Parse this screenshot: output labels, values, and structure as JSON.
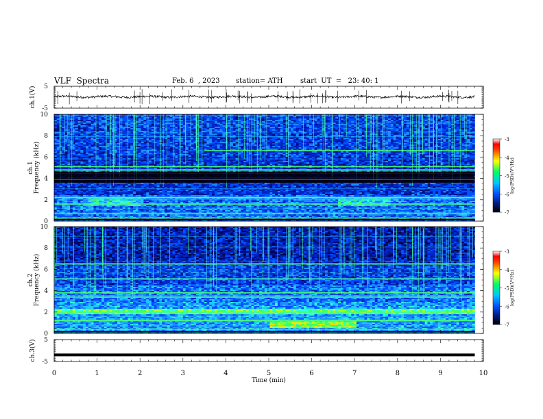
{
  "header": {
    "title": "VLF  Spectra",
    "date": "Feb. 6  , 2023",
    "station": "station= ATH",
    "start": "start  UT  =   23: 40: 1"
  },
  "chart_data": [
    {
      "type": "line",
      "title": "",
      "ylabel": "ch.1(V)",
      "ylim": [
        -5,
        5
      ],
      "yticks": [
        "5",
        "-5"
      ],
      "xlim": [
        0,
        10
      ],
      "x_extent": [
        0,
        9.8
      ],
      "level": 0.2,
      "noise_amplitude": 0.5
    },
    {
      "type": "heatmap",
      "ylabel": "ch.1\nFrequency (kHz)",
      "ylim": [
        0,
        10
      ],
      "yticks": [
        "0",
        "2",
        "4",
        "6",
        "8",
        "10"
      ],
      "xlim": [
        0,
        10
      ],
      "x_extent": [
        0,
        9.8
      ],
      "colorbar": {
        "label": "log(PSD)(V²/Hz)",
        "range": [
          -7,
          -3
        ],
        "ticks": [
          "-3",
          "-4",
          "-5",
          "-6",
          "-7"
        ]
      },
      "features": {
        "strong_lines_khz": [
          0.3,
          0.7,
          1.6,
          2.2,
          4.8,
          5.1,
          6.6
        ],
        "dark_band_khz": [
          3.6,
          4.6
        ],
        "lines_6_6_start_min": 3.5
      }
    },
    {
      "type": "heatmap",
      "ylabel": "ch.2\nFrequency (kHz)",
      "ylim": [
        0,
        10
      ],
      "yticks": [
        "0",
        "2",
        "4",
        "6",
        "8",
        "10"
      ],
      "xlim": [
        0,
        10
      ],
      "x_extent": [
        0,
        9.8
      ],
      "colorbar": {
        "label": "log(PSD)(V²/Hz)",
        "range": [
          -7,
          -3
        ],
        "ticks": [
          "-3",
          "-4",
          "-5",
          "-6",
          "-7"
        ]
      },
      "features": {
        "strong_lines_khz": [
          0.4,
          1.2,
          2.0,
          3.4,
          3.8,
          5.1,
          6.5
        ],
        "bright_band_khz": [
          1.8,
          2.2
        ]
      }
    },
    {
      "type": "line",
      "ylabel": "ch.3(V)",
      "ylim": [
        -5,
        5
      ],
      "yticks": [
        "5",
        "-5"
      ],
      "xlim": [
        0,
        10
      ],
      "x_extent": [
        0,
        9.8
      ],
      "level": -2.0,
      "xlabel": "Time  (min)",
      "xticks": [
        "0",
        "1",
        "2",
        "3",
        "4",
        "5",
        "6",
        "7",
        "8",
        "9",
        "10"
      ]
    }
  ]
}
